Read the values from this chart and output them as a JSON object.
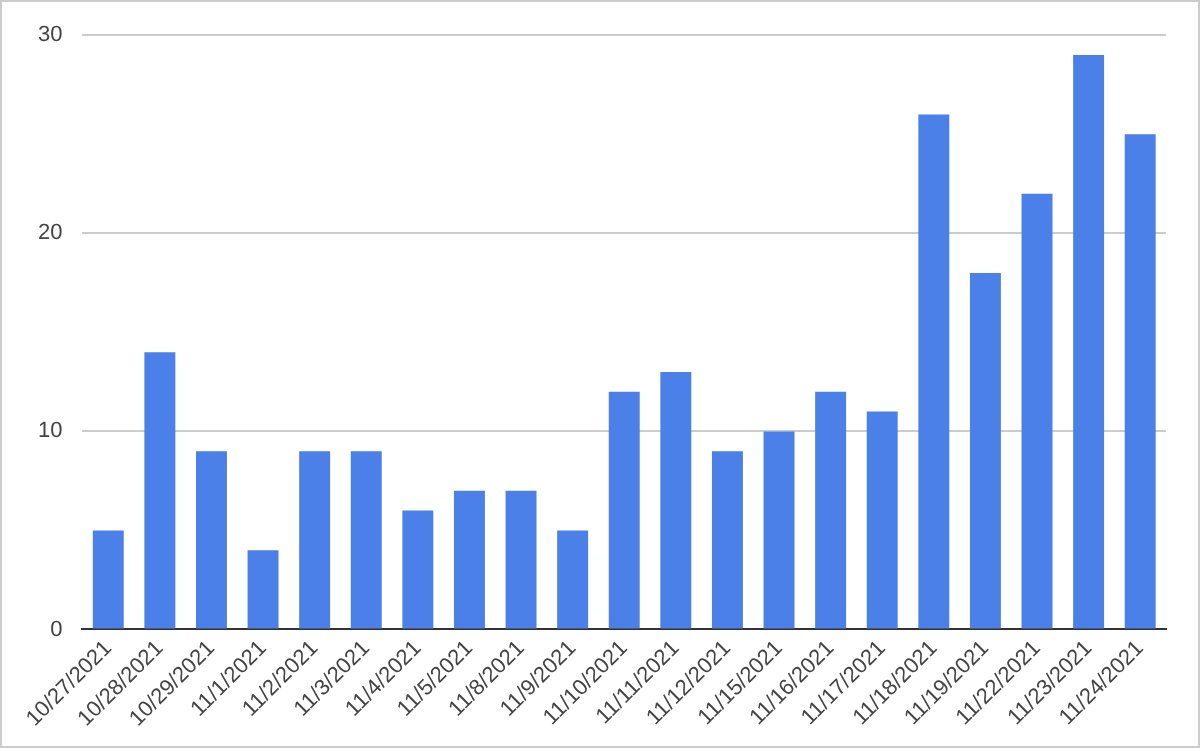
{
  "chart_data": {
    "type": "bar",
    "categories": [
      "10/27/2021",
      "10/28/2021",
      "10/29/2021",
      "11/1/2021",
      "11/2/2021",
      "11/3/2021",
      "11/4/2021",
      "11/5/2021",
      "11/8/2021",
      "11/9/2021",
      "11/10/2021",
      "11/11/2021",
      "11/12/2021",
      "11/15/2021",
      "11/16/2021",
      "11/17/2021",
      "11/18/2021",
      "11/19/2021",
      "11/22/2021",
      "11/23/2021",
      "11/24/2021"
    ],
    "values": [
      5,
      14,
      9,
      4,
      9,
      9,
      6,
      7,
      7,
      5,
      12,
      13,
      9,
      10,
      12,
      11,
      26,
      18,
      22,
      29,
      25
    ],
    "color": "#4a80e8",
    "ylim": [
      0,
      30
    ],
    "yticks": [
      0,
      10,
      20,
      30
    ],
    "grid": "y",
    "legend": false
  }
}
